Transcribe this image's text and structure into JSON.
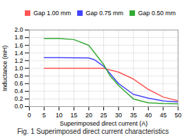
{
  "chart_data": {
    "type": "line",
    "title": "Fig. 1 Superimposed direct current characteristics",
    "xlabel": "Superimposed direct current (A)",
    "ylabel": "Inductance (mH)",
    "xlim": [
      0,
      50
    ],
    "ylim": [
      0.0,
      2.0
    ],
    "xticks": [
      0,
      5,
      10,
      15,
      20,
      25,
      30,
      35,
      40,
      45,
      50
    ],
    "yticks": [
      {
        "value": 0.0,
        "label": "0.0"
      },
      0.2,
      0.4,
      0.6,
      0.8,
      {
        "value": 1.0,
        "label": "1.0"
      },
      1.2,
      1.4,
      1.6,
      1.8,
      {
        "value": 2.0,
        "label": "2.0"
      }
    ],
    "series": [
      {
        "name": "Gap 1.00 mm",
        "color": "#ff5555",
        "x": [
          5,
          10,
          20,
          25,
          30,
          35,
          40,
          45,
          50
        ],
        "values": [
          1.0,
          1.0,
          1.0,
          1.0,
          0.9,
          0.72,
          0.45,
          0.25,
          0.15
        ]
      },
      {
        "name": "Gap 0.75 mm",
        "color": "#4444ff",
        "x": [
          5,
          10,
          20,
          22,
          25,
          27,
          30,
          35,
          40,
          45,
          50
        ],
        "values": [
          1.28,
          1.28,
          1.27,
          1.22,
          1.05,
          0.88,
          0.6,
          0.32,
          0.22,
          0.15,
          0.12
        ]
      },
      {
        "name": "Gap 0.50 mm",
        "color": "#33aa33",
        "x": [
          5,
          10,
          15,
          20,
          25,
          27,
          30,
          35,
          40,
          45,
          50
        ],
        "values": [
          1.78,
          1.78,
          1.75,
          1.6,
          1.1,
          0.82,
          0.55,
          0.2,
          0.1,
          0.08,
          0.07
        ]
      }
    ],
    "grid": true,
    "legend": "upper right"
  }
}
